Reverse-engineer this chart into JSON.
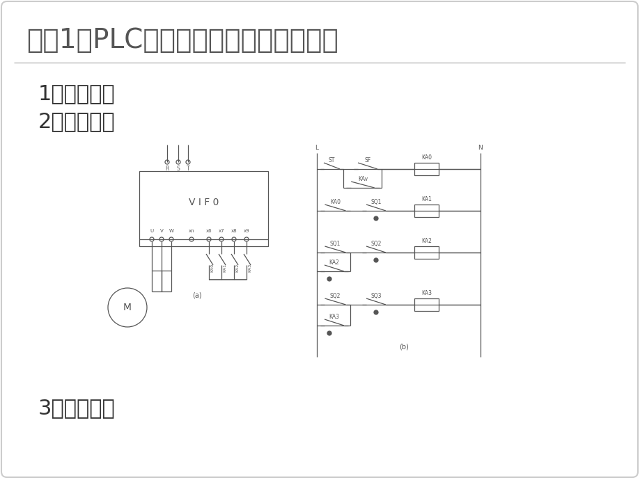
{
  "title": "模块1：PLC控制变频器多段速输出系统",
  "item1": "1、切换过程",
  "item2": "2、控制电路",
  "item3": "3、工作过程",
  "bg_color": "#ffffff",
  "title_color": "#555555",
  "text_color": "#333333",
  "diagram_color": "#555555",
  "title_fontsize": 28,
  "text_fontsize": 22,
  "fig_width": 9.2,
  "fig_height": 6.9
}
